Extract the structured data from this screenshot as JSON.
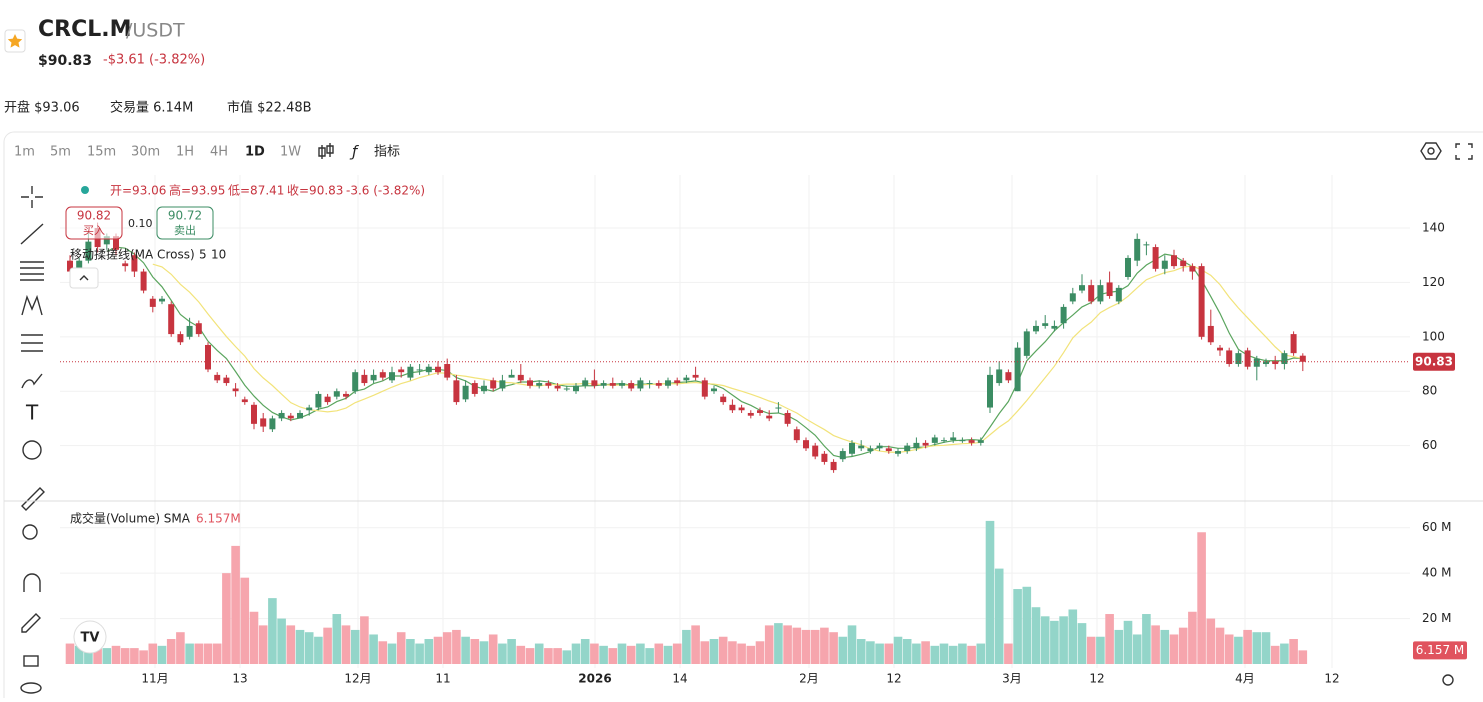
{
  "header": {
    "symbol": "CRCL.M",
    "quote": "/USDT",
    "price": "$90.83",
    "change": "-$3.61 (-3.82%)"
  },
  "stats": [
    "开盘 $93.06",
    "交易量 6.14M",
    "市值 $22.48B"
  ],
  "timeframes": [
    "1m",
    "5m",
    "15m",
    "30m",
    "1H",
    "4H",
    "1D",
    "1W"
  ],
  "indicator_button": "指标",
  "legend": {
    "open": "开=93.06",
    "high": "高=93.95",
    "low": "低=87.41",
    "close": "收=90.83",
    "change": "-3.6 (-3.82%)"
  },
  "trade": {
    "buy_price": "90.82",
    "buy": "买入",
    "spread": "0.10",
    "sell_price": "90.72",
    "sell": "卖出"
  },
  "ma_label": "移动揉搓线(MA Cross)",
  "ma_periods": [
    5,
    10
  ],
  "volume_label": "成交量(Volume) SMA",
  "volume_sma": "6.157M",
  "chart": {
    "type": "candlestick",
    "open": [
      128,
      124,
      128,
      140,
      134,
      137,
      127,
      130,
      124,
      114,
      113,
      112,
      101,
      100,
      105,
      97,
      86,
      85,
      81,
      77,
      75,
      70,
      66,
      70,
      71,
      70,
      73,
      74,
      78,
      78,
      79,
      80,
      86,
      84,
      87,
      84,
      88,
      85,
      88,
      87,
      89,
      90,
      84,
      77,
      83,
      80,
      84,
      81,
      85,
      86,
      84,
      82,
      83,
      82,
      81,
      80,
      82,
      84,
      82,
      83,
      82,
      83,
      81,
      83,
      83,
      82,
      84,
      84,
      86,
      84,
      80,
      78,
      75,
      74,
      72,
      73,
      71,
      74,
      72,
      66,
      62,
      60,
      57,
      54,
      55,
      57,
      59,
      58,
      59,
      59,
      57,
      58,
      59,
      61,
      61,
      62,
      62,
      62,
      62,
      61,
      74,
      83,
      87,
      80,
      93,
      102,
      104,
      103,
      105,
      113,
      117,
      119,
      113,
      120,
      113,
      122,
      128,
      134,
      133,
      125,
      130,
      128,
      126,
      126,
      104,
      96,
      95,
      90,
      95,
      89,
      90,
      91,
      90,
      101,
      93.06
    ],
    "high": [
      130,
      129,
      139,
      142,
      138,
      138,
      128,
      131,
      125,
      115,
      115,
      113,
      102,
      107,
      106,
      98,
      87,
      86,
      83,
      78,
      76,
      72,
      71,
      73,
      72,
      73,
      75,
      80,
      79,
      81,
      80,
      88,
      88,
      88,
      88,
      89,
      89,
      90,
      90,
      90,
      91,
      92,
      86,
      84,
      84,
      84,
      85,
      86,
      88,
      90,
      85,
      84,
      84,
      83,
      82,
      83,
      85,
      88,
      84,
      85,
      84,
      84,
      85,
      84,
      84,
      85,
      85,
      86,
      89,
      85,
      82,
      79,
      77,
      75,
      73,
      74,
      73,
      76,
      73,
      67,
      63,
      61,
      58,
      55,
      59,
      62,
      62,
      60,
      61,
      60,
      59,
      61,
      63,
      62,
      64,
      63,
      65,
      63,
      63,
      63,
      89,
      91,
      88,
      98,
      103,
      106,
      108,
      106,
      112,
      118,
      123,
      121,
      121,
      124,
      119,
      130,
      138,
      135,
      134,
      130,
      132,
      129,
      127,
      127,
      110,
      97,
      96,
      95,
      96,
      93,
      92,
      93,
      95,
      102,
      93.95
    ],
    "low": [
      122,
      123,
      127,
      131,
      132,
      130,
      124,
      122,
      116,
      109,
      112,
      100,
      97,
      99,
      100,
      87,
      83,
      82,
      78,
      75,
      66,
      65,
      65,
      69,
      69,
      70,
      71,
      73,
      75,
      77,
      77,
      79,
      82,
      83,
      84,
      83,
      85,
      84,
      86,
      86,
      86,
      84,
      75,
      76,
      78,
      79,
      80,
      80,
      85,
      83,
      81,
      81,
      81,
      80,
      80,
      79,
      81,
      81,
      81,
      81,
      81,
      80,
      80,
      81,
      81,
      81,
      82,
      83,
      84,
      77,
      79,
      75,
      72,
      72,
      70,
      71,
      69,
      72,
      67,
      61,
      58,
      55,
      53,
      50,
      54,
      56,
      58,
      57,
      58,
      57,
      56,
      57,
      58,
      59,
      60,
      61,
      61,
      61,
      60,
      60,
      72,
      82,
      83,
      80,
      92,
      101,
      103,
      102,
      103,
      112,
      116,
      112,
      112,
      114,
      112,
      121,
      126,
      130,
      124,
      123,
      125,
      124,
      121,
      99,
      97,
      93,
      89,
      89,
      88,
      84,
      89,
      88,
      88,
      93,
      87.41
    ],
    "close": [
      124,
      128,
      135,
      133,
      137,
      132,
      126,
      124,
      117,
      111,
      114,
      101,
      98,
      104,
      101,
      88,
      84,
      83,
      80,
      76,
      68,
      67,
      70,
      72,
      70,
      72,
      74,
      79,
      76,
      80,
      78,
      87,
      83,
      86,
      85,
      87,
      87,
      89,
      88,
      89,
      87,
      85,
      76,
      82,
      79,
      82,
      81,
      84,
      86,
      84,
      82,
      83,
      82,
      81,
      81,
      82,
      84,
      82,
      83,
      82,
      83,
      81,
      84,
      83,
      82,
      84,
      83,
      85,
      85,
      78,
      81,
      76,
      73,
      73,
      71,
      72,
      70,
      74,
      68,
      62,
      59,
      56,
      54,
      51,
      58,
      61,
      60,
      59,
      60,
      58,
      58,
      60,
      61,
      60,
      63,
      62,
      63,
      62,
      61,
      62,
      86,
      88,
      84,
      96,
      102,
      104,
      105,
      104,
      111,
      116,
      119,
      113,
      119,
      115,
      118,
      129,
      136,
      134,
      125,
      128,
      126,
      126,
      124,
      100,
      98,
      95,
      90,
      94,
      89,
      92,
      91,
      90,
      94,
      94,
      90.83
    ],
    "volume": [
      9,
      8,
      9,
      8,
      7,
      8,
      7,
      7,
      6,
      9,
      8,
      11,
      14,
      9,
      9,
      9,
      9,
      40,
      52,
      38,
      23,
      17,
      29,
      20,
      17,
      15,
      14,
      12,
      16,
      22,
      17,
      15,
      21,
      13,
      10,
      9,
      14,
      11,
      9,
      11,
      12,
      14,
      15,
      12,
      11,
      10,
      13,
      9,
      11,
      8,
      7,
      9,
      7,
      7,
      6,
      9,
      11,
      9,
      8,
      7,
      9,
      8,
      9,
      7,
      9,
      8,
      9,
      15,
      17,
      10,
      11,
      12,
      10,
      9,
      8,
      10,
      17,
      18,
      17,
      16,
      15,
      15,
      16,
      14,
      12,
      17,
      11,
      10,
      9,
      9,
      12,
      11,
      9,
      10,
      8,
      9,
      8,
      9,
      8,
      9,
      63,
      42,
      9,
      33,
      34,
      25,
      21,
      19,
      21,
      24,
      18,
      12,
      12,
      22,
      15,
      19,
      13,
      22,
      17,
      15,
      13,
      16,
      23,
      58,
      20,
      16,
      13,
      12,
      15,
      14,
      14,
      8,
      9,
      11,
      6
    ],
    "ylim": [
      40,
      159.5
    ],
    "yticks": [
      60,
      80,
      100,
      120,
      140
    ],
    "volume_ylim": [
      0,
      70
    ],
    "volume_yticks": [
      {
        "value": 20,
        "label": "20 M"
      },
      {
        "value": 40,
        "label": "40 M"
      },
      {
        "value": 60,
        "label": "60 M"
      }
    ],
    "last_price": 90.83,
    "last_price_label": "90.83",
    "last_volume_label": "6.157 M",
    "x_labels": [
      "11月",
      "13",
      "12月",
      "11",
      "2026",
      "14",
      "2月",
      "12",
      "3月",
      "12",
      "4月",
      "12"
    ],
    "up_color": "#3b8c63",
    "down_color": "#c7343f",
    "volume_up_color": "#93d5c9",
    "volume_down_color": "#f6a5ad",
    "ma_colors": [
      "#5aa55e",
      "#f2e37a"
    ]
  }
}
